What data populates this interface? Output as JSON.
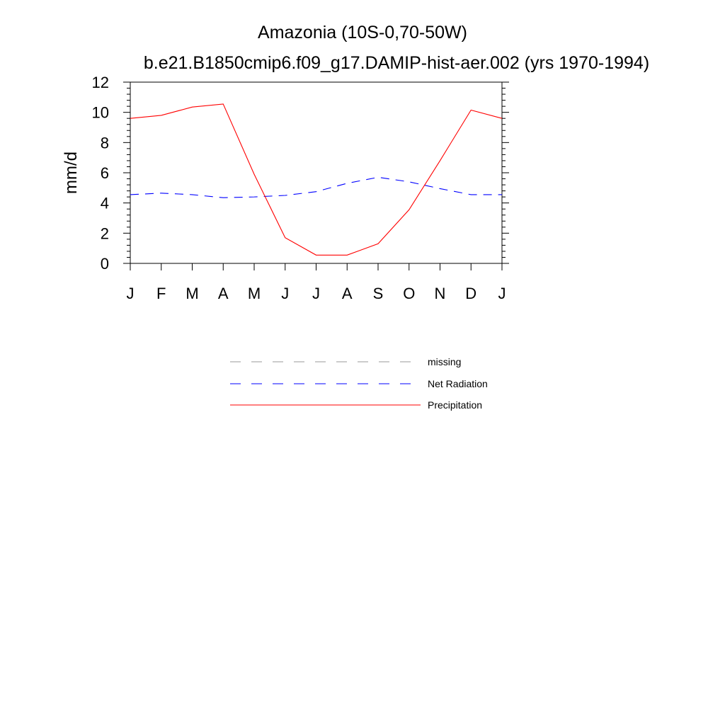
{
  "chart_data": {
    "type": "line",
    "title": "Amazonia (10S-0,70-50W)",
    "subtitle": "b.e21.B1850cmip6.f09_g17.DAMIP-hist-aer.002 (yrs 1970-1994)",
    "xlabel": "",
    "ylabel": "mm/d",
    "categories": [
      "J",
      "F",
      "M",
      "A",
      "M",
      "J",
      "J",
      "A",
      "S",
      "O",
      "N",
      "D",
      "J"
    ],
    "ylim": [
      0,
      12
    ],
    "yticks": [
      "0",
      "2",
      "4",
      "6",
      "8",
      "10",
      "12"
    ],
    "grid": false,
    "legend_position": "bottom-center",
    "series": [
      {
        "name": "Net Radiation",
        "color": "#0000ff",
        "dash": "dashed",
        "values": [
          4.55,
          4.65,
          4.55,
          4.35,
          4.4,
          4.5,
          4.75,
          5.3,
          5.7,
          5.4,
          4.95,
          4.55,
          4.55
        ]
      },
      {
        "name": "Precipitation",
        "color": "#ff0000",
        "dash": "solid",
        "values": [
          9.6,
          9.8,
          10.35,
          10.55,
          5.9,
          1.7,
          0.55,
          0.55,
          1.3,
          3.55,
          6.8,
          10.15,
          9.6
        ]
      }
    ],
    "legend": [
      {
        "label": "missing",
        "color": "#9a9a9a",
        "dash": "dashed"
      },
      {
        "label": "Net Radiation",
        "color": "#0000ff",
        "dash": "dashed"
      },
      {
        "label": "Precipitation",
        "color": "#ff0000",
        "dash": "solid"
      }
    ]
  }
}
